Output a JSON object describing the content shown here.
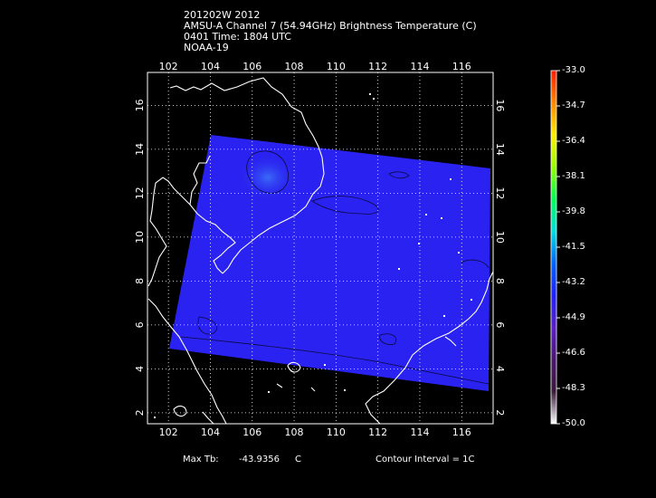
{
  "title": {
    "line1": "201202W 2012",
    "line2": "AMSU-A Channel 7 (54.94GHz) Brightness Temperature (C)",
    "line3": "0401 Time: 1804 UTC",
    "line4": "NOAA-19"
  },
  "map": {
    "lon_range": [
      101.0,
      117.5
    ],
    "lat_range": [
      1.5,
      17.5
    ],
    "lon_ticks": [
      "102",
      "104",
      "106",
      "108",
      "110",
      "112",
      "114",
      "116"
    ],
    "lat_ticks": [
      "2",
      "4",
      "6",
      "8",
      "10",
      "12",
      "14",
      "16"
    ],
    "gridlines": true,
    "land_outline_color": "#ffffff",
    "swath_color": "#2a22f0"
  },
  "colorbar": {
    "colors_top_to_bottom": [
      "#ff1a00",
      "#ff8800",
      "#ffee00",
      "#99ff00",
      "#00ff55",
      "#00e0e0",
      "#0066ff",
      "#2020ff",
      "#5a1fc8",
      "#4a1670",
      "#3a1a3a",
      "#ffffff"
    ],
    "labels": [
      "-33.0",
      "-34.7",
      "-36.4",
      "-38.1",
      "-39.8",
      "-41.5",
      "-43.2",
      "-44.9",
      "-46.6",
      "-48.3",
      "-50.0"
    ]
  },
  "footer": {
    "max_label": "Max Tb:",
    "max_value": "-43.9356",
    "max_unit": "C",
    "contour": "Contour Interval = 1C"
  }
}
